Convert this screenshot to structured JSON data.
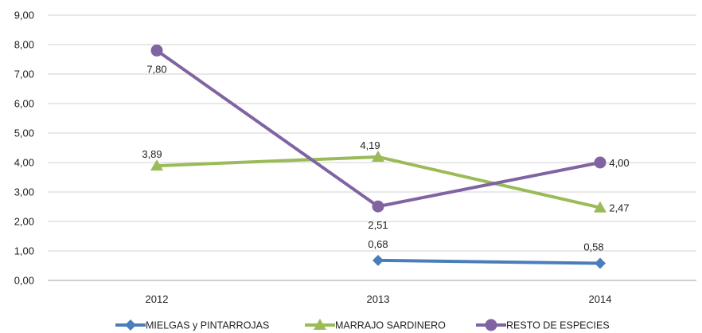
{
  "chart_data": {
    "type": "line",
    "title": "",
    "xlabel": "",
    "ylabel": "",
    "categories": [
      "2012",
      "2013",
      "2014"
    ],
    "ylim": [
      0,
      9
    ],
    "yticks": [
      "0,00",
      "1,00",
      "2,00",
      "3,00",
      "4,00",
      "5,00",
      "6,00",
      "7,00",
      "8,00",
      "9,00"
    ],
    "grid": true,
    "legend_position": "bottom",
    "series": [
      {
        "name": "MIELGAS y PINTARROJAS",
        "color": "#4A7EBB",
        "marker": "diamond",
        "values": [
          null,
          0.68,
          0.58
        ],
        "labels": [
          "",
          "0,68",
          "0,58"
        ]
      },
      {
        "name": "MARRAJO SARDINERO",
        "color": "#9BBB59",
        "marker": "triangle",
        "values": [
          3.89,
          4.19,
          2.47
        ],
        "labels": [
          "3,89",
          "4,19",
          "2,47"
        ]
      },
      {
        "name": "RESTO DE ESPECIES",
        "color": "#8064A2",
        "marker": "circle",
        "values": [
          7.8,
          2.51,
          4.0
        ],
        "labels": [
          "7,80",
          "2,51",
          "4,00"
        ]
      }
    ]
  }
}
